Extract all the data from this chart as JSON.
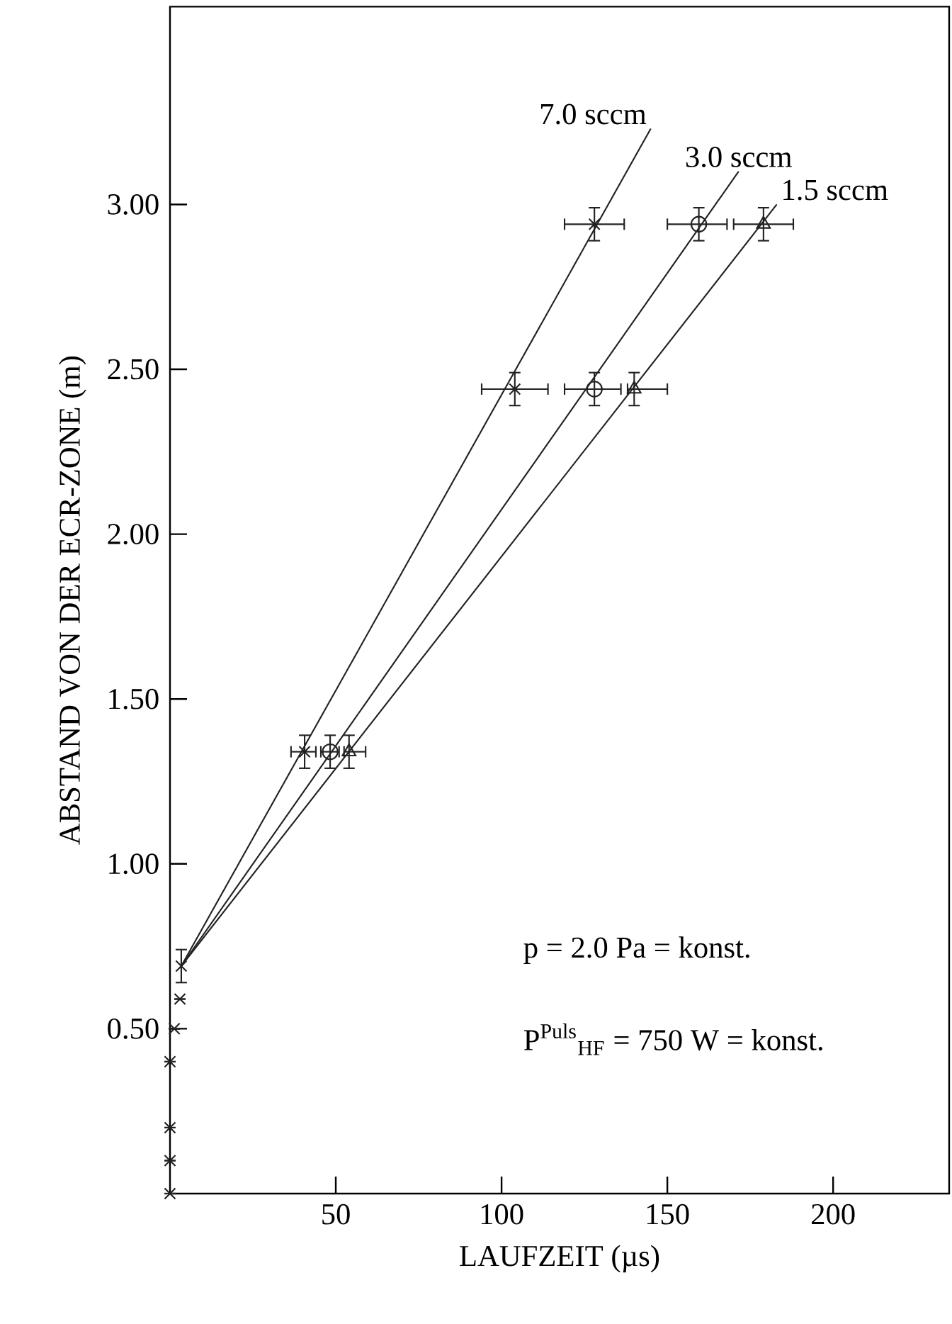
{
  "chart_data": {
    "type": "scatter",
    "xlabel": "LAUFZEIT (µs)",
    "ylabel": "ABSTAND VON DER ECR-ZONE (m)",
    "xlim": [
      0,
      235
    ],
    "ylim": [
      0,
      3.6
    ],
    "xticks": [
      50,
      100,
      150,
      200
    ],
    "yticks": [
      {
        "value": 0.5,
        "label": "0.50"
      },
      {
        "value": 1,
        "label": "1.00"
      },
      {
        "value": 1.5,
        "label": "1.50"
      },
      {
        "value": 2,
        "label": "2.00"
      },
      {
        "value": 2.5,
        "label": "2.50"
      },
      {
        "value": 3,
        "label": "3.00"
      }
    ],
    "grid": false,
    "legend": false,
    "annotations": [
      "p = 2.0 Pa = konst.",
      "P$^{Puls}$$_{HF}$ = 750 W = konst."
    ],
    "series": [
      {
        "name": "7.0 sccm",
        "type": "line",
        "color": "#222222",
        "marker": "none",
        "x": [
          3.4,
          145
        ],
        "values": [
          0.69,
          3.23
        ]
      },
      {
        "name": "3.0 sccm",
        "type": "line",
        "color": "#222222",
        "marker": "none",
        "x": [
          3.4,
          171.5
        ],
        "values": [
          0.69,
          3.1
        ]
      },
      {
        "name": "1.5 sccm",
        "type": "line",
        "color": "#222222",
        "marker": "none",
        "x": [
          3.4,
          183
        ],
        "values": [
          0.69,
          3.0
        ]
      },
      {
        "type": "scatter",
        "color": "#222222",
        "marker": "cross",
        "x": [
          40.6,
          104,
          128
        ],
        "values": [
          1.34,
          2.44,
          2.94
        ],
        "errors": [
          0.05,
          0.05,
          0.05
        ],
        "xerrors": [
          [
            36.5,
            44
          ],
          [
            94,
            114
          ],
          [
            119,
            137
          ]
        ]
      },
      {
        "type": "scatter",
        "color": "#222222",
        "marker": "circle",
        "x": [
          48.3,
          128,
          159.5
        ],
        "values": [
          1.34,
          2.44,
          2.94
        ],
        "errors": [
          0.05,
          0.05,
          0.05
        ],
        "xerrors": [
          [
            45.5,
            51
          ],
          [
            119,
            136
          ],
          [
            150,
            168
          ]
        ]
      },
      {
        "type": "scatter",
        "color": "#222222",
        "marker": "triangle",
        "x": [
          54,
          140,
          179
        ],
        "values": [
          1.34,
          2.44,
          2.94
        ],
        "errors": [
          0.05,
          0.05,
          0.05
        ],
        "xerrors": [
          [
            52.5,
            59
          ],
          [
            138,
            150
          ],
          [
            170,
            188
          ]
        ]
      },
      {
        "type": "scatter",
        "color": "#222222",
        "marker": "cross",
        "x": [
          0,
          0,
          0,
          0,
          1.3,
          3,
          3.4
        ],
        "values": [
          0,
          0.1,
          0.2,
          0.4,
          0.5,
          0.59,
          0.69
        ],
        "errors": [
          null,
          null,
          null,
          null,
          null,
          null,
          0.05
        ]
      }
    ]
  }
}
